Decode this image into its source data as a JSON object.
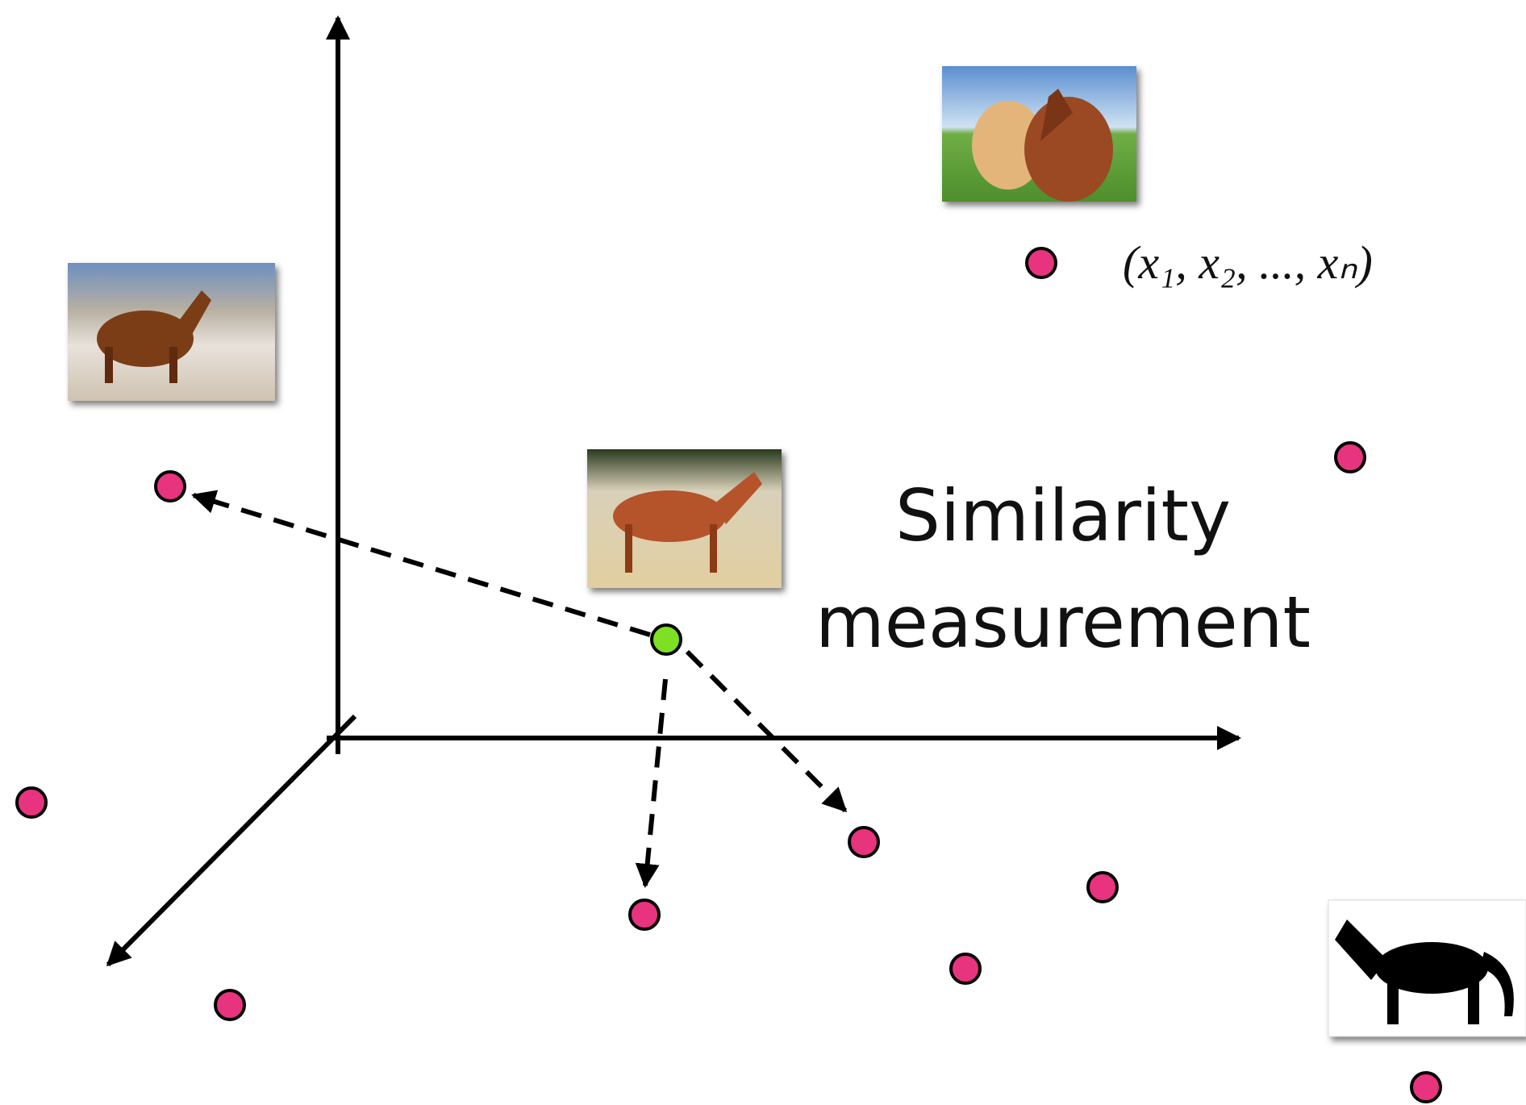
{
  "label": [
    "Similarity",
    "measurement"
  ],
  "vector_label": "(x₁, x₂, ..., xₙ)"
}
